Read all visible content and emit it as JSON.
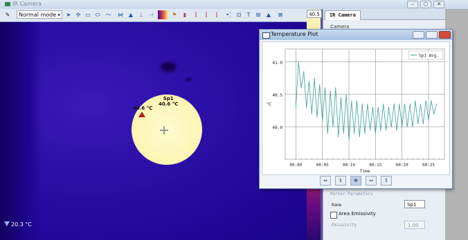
{
  "window": {
    "title": "IR Camera"
  },
  "toolbar": {
    "mode": "Normal mode"
  },
  "thermal": {
    "spot_name": "Sp1",
    "spot_temp": "40.6 °C",
    "max_temp": "40.6 °C",
    "min_temp": "20.3 °C",
    "scale_max": "40.5"
  },
  "panel": {
    "tab": "IR Camera",
    "row1": "Camera",
    "section": "Marker Parameters",
    "name_label": "Name",
    "name_value": "Sp1",
    "area_emissivity": "Area Emissivity",
    "emissivity_label": "Emissivity",
    "emissivity_value": "1.00"
  },
  "plot": {
    "title": "Temperature Plot"
  },
  "chart_data": {
    "type": "line",
    "title": "",
    "xlabel": "Time",
    "ylabel": "°C",
    "x_ticks": [
      "00:00",
      "00:05",
      "00:10",
      "00:15",
      "00:20",
      "00:25"
    ],
    "y_ticks": [
      "40.0",
      "40.5",
      "41.0"
    ],
    "ylim": [
      39.5,
      41.2
    ],
    "xlim_minutes": [
      -2,
      28
    ],
    "legend": "top-right",
    "grid": true,
    "series": [
      {
        "name": "Sp1 Avg.",
        "color": "#3a9e9a",
        "x": [
          0,
          0.5,
          1,
          1.5,
          2,
          2.5,
          3,
          3.5,
          4,
          4.5,
          5,
          5.5,
          6,
          6.5,
          7,
          7.5,
          8,
          8.5,
          9,
          9.5,
          10,
          10.5,
          11,
          11.5,
          12,
          12.5,
          13,
          13.5,
          14,
          14.5,
          15,
          15.5,
          16,
          16.5,
          17,
          17.5,
          18,
          18.5,
          19,
          19.5,
          20,
          20.5,
          21,
          21.5,
          22,
          22.5,
          23,
          23.5,
          24,
          24.5,
          25,
          25.5,
          26,
          26.5
        ],
        "y": [
          40.3,
          41.0,
          40.6,
          40.85,
          40.3,
          40.7,
          40.2,
          40.75,
          40.15,
          40.65,
          40.1,
          40.6,
          39.9,
          40.55,
          40.0,
          40.6,
          39.85,
          40.45,
          39.9,
          40.5,
          39.8,
          40.4,
          39.9,
          40.4,
          39.85,
          40.35,
          39.9,
          40.35,
          39.95,
          40.3,
          39.9,
          40.3,
          39.95,
          40.35,
          39.95,
          40.3,
          40.0,
          40.35,
          39.95,
          40.35,
          40.0,
          40.35,
          40.0,
          40.35,
          40.0,
          40.4,
          40.05,
          40.35,
          40.05,
          40.4,
          40.1,
          40.4,
          40.2,
          40.35
        ]
      }
    ]
  }
}
